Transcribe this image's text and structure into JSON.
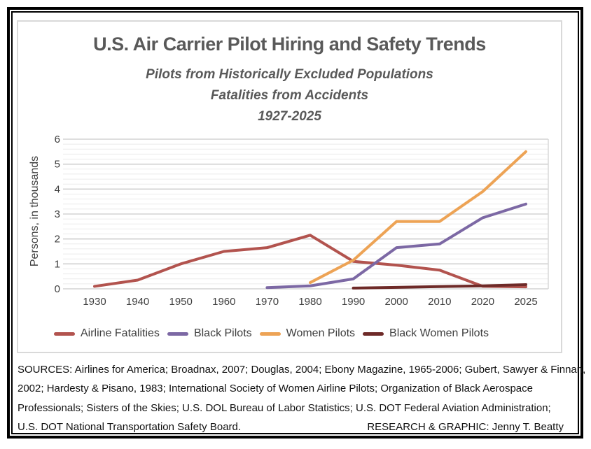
{
  "chart_data": {
    "type": "line",
    "title": "U.S. Air Carrier Pilot Hiring and Safety Trends",
    "subtitle_lines": [
      "Pilots from Historically Excluded Populations",
      "Fatalities from Accidents",
      "1927-2025"
    ],
    "xlabel": "",
    "ylabel": "Persons, in thousands",
    "ylim": [
      0,
      6
    ],
    "ytick_step": 1,
    "y_minor_step": 0.2,
    "grid": {
      "major": "#c9c9c9",
      "minor": "#ebebeb",
      "border": "#d9d9d9"
    },
    "legend_position": "bottom",
    "categories": [
      "1930",
      "1940",
      "1950",
      "1960",
      "1970",
      "1980",
      "1990",
      "2000",
      "2010",
      "2020",
      "2025"
    ],
    "series": [
      {
        "name": "Airline Fatalities",
        "color": "#b2534e",
        "values": [
          0.1,
          0.35,
          1.0,
          1.5,
          1.65,
          2.15,
          1.1,
          0.95,
          0.75,
          0.1,
          0.08
        ]
      },
      {
        "name": "Black Pilots",
        "color": "#7c68a4",
        "values": [
          null,
          null,
          null,
          null,
          0.05,
          0.12,
          0.4,
          1.65,
          1.8,
          2.85,
          3.4
        ]
      },
      {
        "name": "Women Pilots",
        "color": "#eda355",
        "values": [
          null,
          null,
          null,
          null,
          null,
          0.25,
          1.15,
          2.7,
          2.7,
          3.9,
          5.5
        ]
      },
      {
        "name": "Black Women Pilots",
        "color": "#6e2a28",
        "values": [
          null,
          null,
          null,
          null,
          null,
          null,
          0.03,
          0.06,
          0.09,
          0.12,
          0.17
        ]
      }
    ]
  },
  "footer": {
    "lines": [
      "SOURCES: Airlines for America; Broadnax, 2007; Douglas, 2004; Ebony Magazine, 1965-2006; Gubert, Sawyer & Finnan,",
      "2002; Hardesty & Pisano, 1983; International Society of Women Airline Pilots; Organization of Black Aerospace",
      "Professionals; Sisters of the Skies; U.S. DOL Bureau of Labor Statistics; U.S. DOT Federal Aviation Administration;",
      "U.S. DOT National Transportation Safety Board."
    ],
    "credit": "RESEARCH & GRAPHIC: Jenny T. Beatty"
  }
}
